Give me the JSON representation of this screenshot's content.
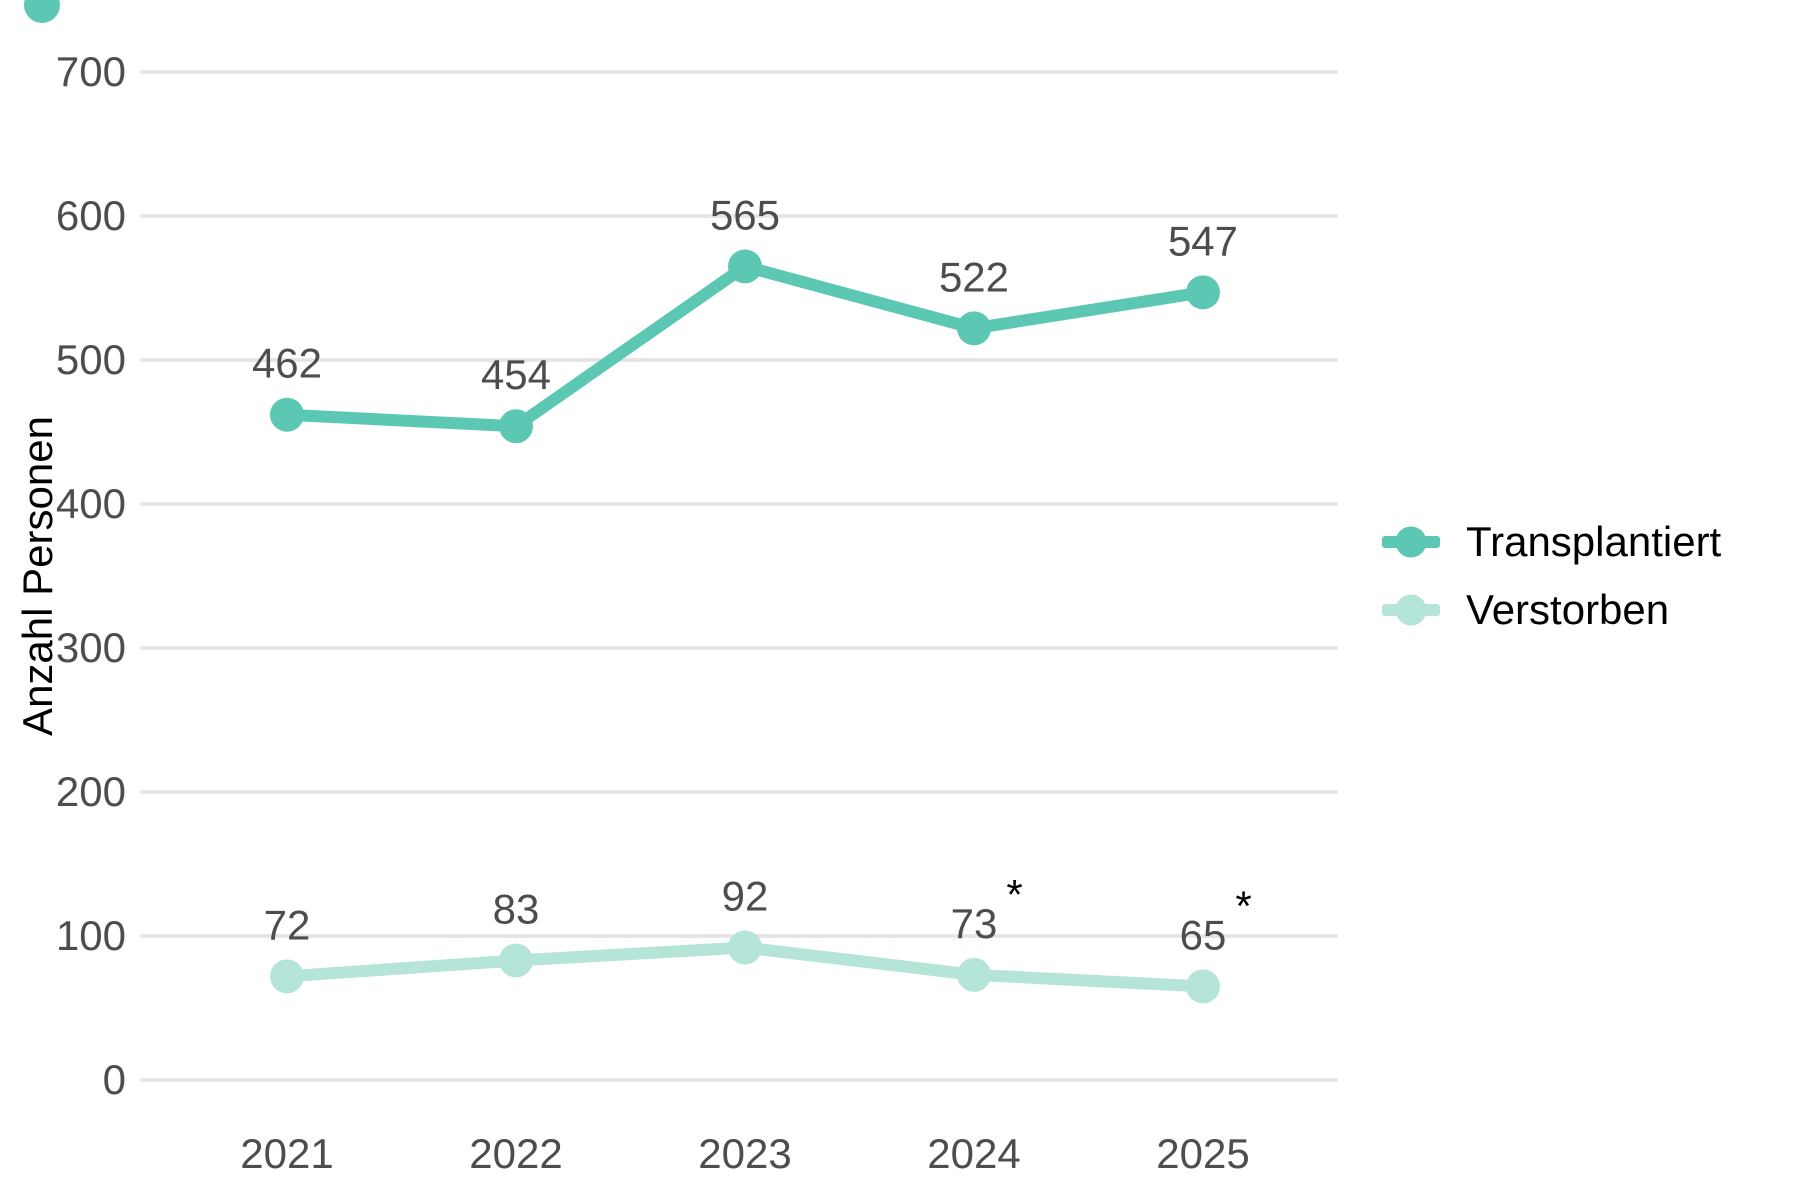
{
  "chart_data": {
    "type": "line",
    "title": "",
    "xlabel": "",
    "ylabel": "Anzahl Personen",
    "categories": [
      "2021",
      "2022",
      "2023",
      "2024",
      "2025"
    ],
    "yticks": [
      0,
      100,
      200,
      300,
      400,
      500,
      600,
      700
    ],
    "ylim": [
      0,
      700
    ],
    "grid": "horizontal-only",
    "legend_position": "right",
    "series": [
      {
        "name": "Transplantiert",
        "color": "#5CC8B3",
        "values": [
          462,
          454,
          565,
          522,
          547
        ],
        "labels": [
          "462",
          "454",
          "565",
          "522",
          "547"
        ],
        "asterisk": [
          false,
          false,
          false,
          false,
          false
        ]
      },
      {
        "name": "Verstorben",
        "color": "#B4E5D8",
        "values": [
          72,
          83,
          92,
          73,
          65
        ],
        "labels": [
          "72",
          "83",
          "92",
          "73",
          "65"
        ],
        "asterisk": [
          false,
          false,
          false,
          true,
          true
        ]
      }
    ],
    "colors": {
      "grid": "#E6E6E6",
      "tick_text": "#4D4D4D",
      "value_label_text": "#4D4D4D",
      "asterisk": "#000000",
      "axis_title": "#000000",
      "legend_text": "#000000",
      "background": "#FFFFFF",
      "corner_mark": "#5CC8B3"
    }
  }
}
